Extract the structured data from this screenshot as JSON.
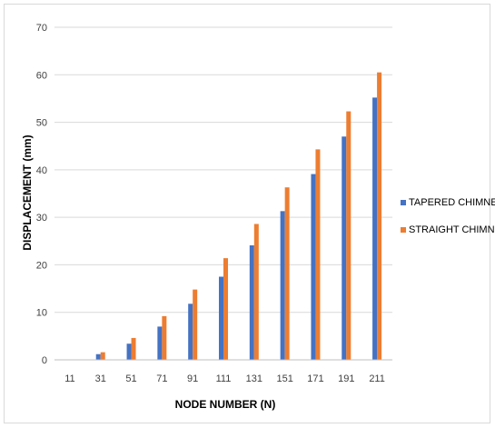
{
  "chart_data": {
    "type": "bar",
    "title": "",
    "xlabel": "NODE NUMBER (N)",
    "ylabel": "DISPLACEMENT (mm)",
    "ylim": [
      0,
      70
    ],
    "yticks": [
      0,
      10,
      20,
      30,
      40,
      50,
      60,
      70
    ],
    "grid": true,
    "legend_position": "right",
    "categories": [
      "11",
      "31",
      "51",
      "71",
      "91",
      "111",
      "131",
      "151",
      "171",
      "191",
      "211"
    ],
    "series": [
      {
        "name": "TAPERED CHIMNEY",
        "color": "#4472c4",
        "values": [
          0,
          1.2,
          3.4,
          7.0,
          11.8,
          17.5,
          24.1,
          31.3,
          39.1,
          47.0,
          55.2
        ]
      },
      {
        "name": "STRAIGHT CHIMNEY",
        "color": "#ed7d31",
        "values": [
          0,
          1.6,
          4.6,
          9.2,
          14.8,
          21.4,
          28.6,
          36.3,
          44.3,
          52.3,
          60.5
        ]
      }
    ]
  }
}
